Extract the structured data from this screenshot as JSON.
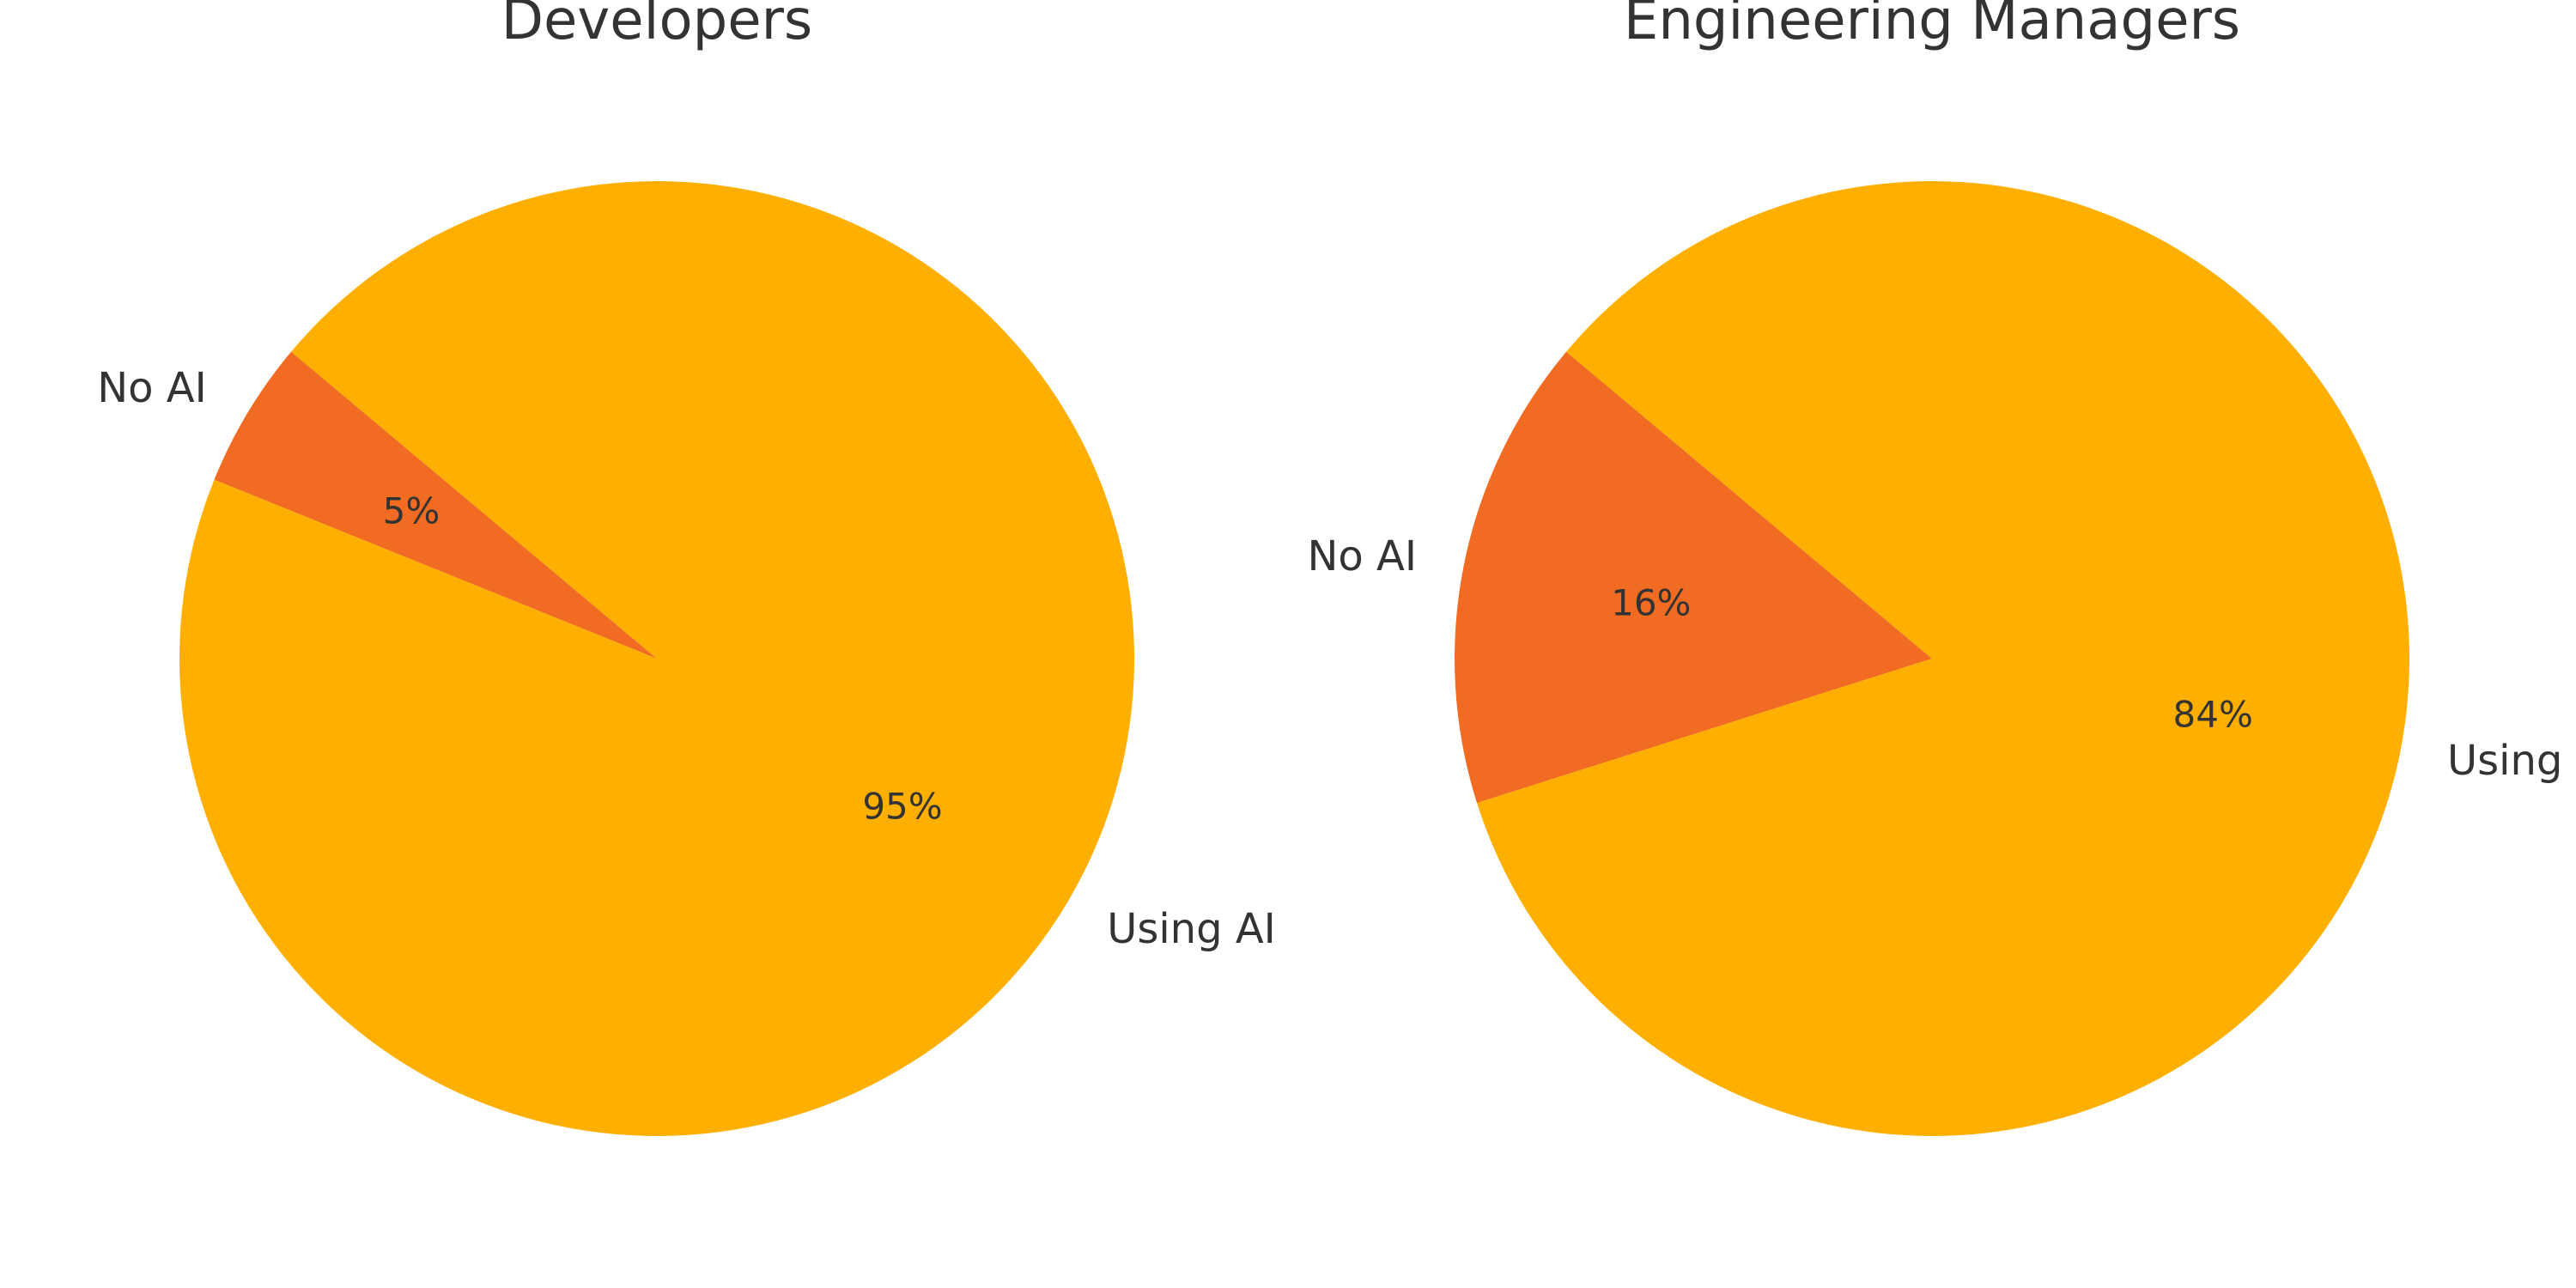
{
  "chart_data": [
    {
      "type": "pie",
      "title": "Developers",
      "slices": [
        {
          "label": "No AI",
          "value": 5,
          "pct_label": "5%",
          "color": "#F26B22"
        },
        {
          "label": "Using AI",
          "value": 95,
          "pct_label": "95%",
          "color": "#FFAF00"
        }
      ],
      "start_angle_deg": 140,
      "direction": "counterclockwise",
      "legend": "none"
    },
    {
      "type": "pie",
      "title": "Engineering Managers",
      "slices": [
        {
          "label": "No AI",
          "value": 16,
          "pct_label": "16%",
          "color": "#F26B22"
        },
        {
          "label": "Using AI",
          "value": 84,
          "pct_label": "84%",
          "color": "#FFAF00"
        }
      ],
      "start_angle_deg": 140,
      "direction": "counterclockwise",
      "legend": "none"
    }
  ]
}
